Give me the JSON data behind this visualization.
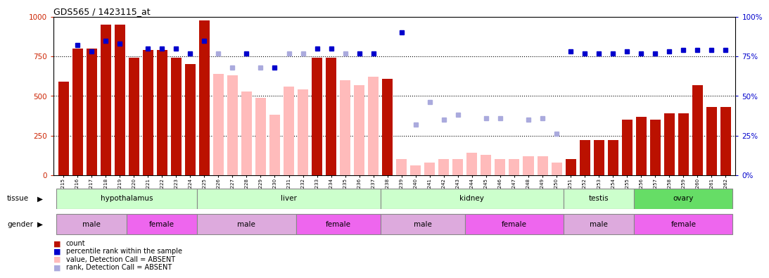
{
  "title": "GDS565 / 1423115_at",
  "samples": [
    "GSM19215",
    "GSM19216",
    "GSM19217",
    "GSM19218",
    "GSM19219",
    "GSM19220",
    "GSM19221",
    "GSM19222",
    "GSM19223",
    "GSM19224",
    "GSM19225",
    "GSM19226",
    "GSM19227",
    "GSM19228",
    "GSM19229",
    "GSM19230",
    "GSM19231",
    "GSM19232",
    "GSM19233",
    "GSM19234",
    "GSM19235",
    "GSM19236",
    "GSM19237",
    "GSM19238",
    "GSM19239",
    "GSM19240",
    "GSM19241",
    "GSM19242",
    "GSM19243",
    "GSM19244",
    "GSM19245",
    "GSM19246",
    "GSM19247",
    "GSM19248",
    "GSM19249",
    "GSM19250",
    "GSM19251",
    "GSM19252",
    "GSM19253",
    "GSM19254",
    "GSM19255",
    "GSM19256",
    "GSM19257",
    "GSM19258",
    "GSM19259",
    "GSM19260",
    "GSM19261",
    "GSM19262"
  ],
  "bar_values": [
    590,
    800,
    800,
    950,
    950,
    740,
    790,
    790,
    740,
    700,
    980,
    640,
    630,
    530,
    490,
    380,
    560,
    540,
    740,
    740,
    600,
    570,
    620,
    610,
    100,
    60,
    80,
    100,
    100,
    140,
    130,
    100,
    100,
    120,
    120,
    80,
    100,
    220,
    220,
    220,
    350,
    370,
    350,
    390,
    390,
    570,
    430,
    430
  ],
  "bar_absent": [
    false,
    false,
    false,
    false,
    false,
    false,
    false,
    false,
    false,
    false,
    false,
    true,
    true,
    true,
    true,
    true,
    true,
    true,
    false,
    false,
    true,
    true,
    true,
    false,
    true,
    true,
    true,
    true,
    true,
    true,
    true,
    true,
    true,
    true,
    true,
    true,
    false,
    false,
    false,
    false,
    false,
    false,
    false,
    false,
    false,
    false,
    false,
    false
  ],
  "rank_present": [
    null,
    82,
    78,
    85,
    83,
    null,
    80,
    80,
    80,
    77,
    85,
    null,
    null,
    77,
    null,
    68,
    null,
    null,
    80,
    80,
    null,
    77,
    77,
    null,
    null,
    null,
    null,
    null,
    null,
    null,
    null,
    null,
    null,
    null,
    null,
    null,
    null,
    null,
    null,
    null,
    null,
    null,
    null,
    null,
    null,
    null,
    null,
    null
  ],
  "rank_absent": [
    null,
    null,
    null,
    null,
    null,
    null,
    null,
    null,
    null,
    null,
    null,
    77,
    68,
    null,
    68,
    null,
    77,
    77,
    null,
    null,
    77,
    null,
    null,
    null,
    null,
    32,
    46,
    35,
    38,
    null,
    36,
    36,
    null,
    35,
    36,
    26,
    null,
    null,
    null,
    null,
    null,
    null,
    null,
    null,
    null,
    null,
    null,
    null
  ],
  "rank_present2": [
    null,
    null,
    null,
    null,
    null,
    null,
    null,
    null,
    null,
    null,
    null,
    null,
    null,
    null,
    null,
    null,
    null,
    null,
    null,
    null,
    null,
    null,
    null,
    null,
    90,
    null,
    null,
    null,
    null,
    null,
    null,
    null,
    null,
    null,
    null,
    null,
    78,
    77,
    77,
    77,
    78,
    77,
    77,
    78,
    79,
    79,
    79,
    79
  ],
  "tissue_groups": [
    {
      "label": "hypothalamus",
      "start": 0,
      "end": 10,
      "color": "#ccffcc"
    },
    {
      "label": "liver",
      "start": 10,
      "end": 23,
      "color": "#ccffcc"
    },
    {
      "label": "kidney",
      "start": 23,
      "end": 36,
      "color": "#ccffcc"
    },
    {
      "label": "testis",
      "start": 36,
      "end": 41,
      "color": "#ccffcc"
    },
    {
      "label": "ovary",
      "start": 41,
      "end": 48,
      "color": "#66dd66"
    }
  ],
  "gender_groups": [
    {
      "label": "male",
      "start": 0,
      "end": 5,
      "color": "#ddaadd"
    },
    {
      "label": "female",
      "start": 5,
      "end": 10,
      "color": "#ee66ee"
    },
    {
      "label": "male",
      "start": 10,
      "end": 17,
      "color": "#ddaadd"
    },
    {
      "label": "female",
      "start": 17,
      "end": 23,
      "color": "#ee66ee"
    },
    {
      "label": "male",
      "start": 23,
      "end": 29,
      "color": "#ddaadd"
    },
    {
      "label": "female",
      "start": 29,
      "end": 36,
      "color": "#ee66ee"
    },
    {
      "label": "male",
      "start": 36,
      "end": 41,
      "color": "#ddaadd"
    },
    {
      "label": "female",
      "start": 41,
      "end": 48,
      "color": "#ee66ee"
    }
  ],
  "ylim_left": [
    0,
    1000
  ],
  "ylim_right": [
    0,
    100
  ],
  "yticks_left": [
    0,
    250,
    500,
    750,
    1000
  ],
  "yticks_right": [
    0,
    25,
    50,
    75,
    100
  ],
  "bar_color_present": "#bb1100",
  "bar_color_absent": "#ffbbbb",
  "rank_color_present": "#0000cc",
  "rank_color_absent": "#aaaadd"
}
